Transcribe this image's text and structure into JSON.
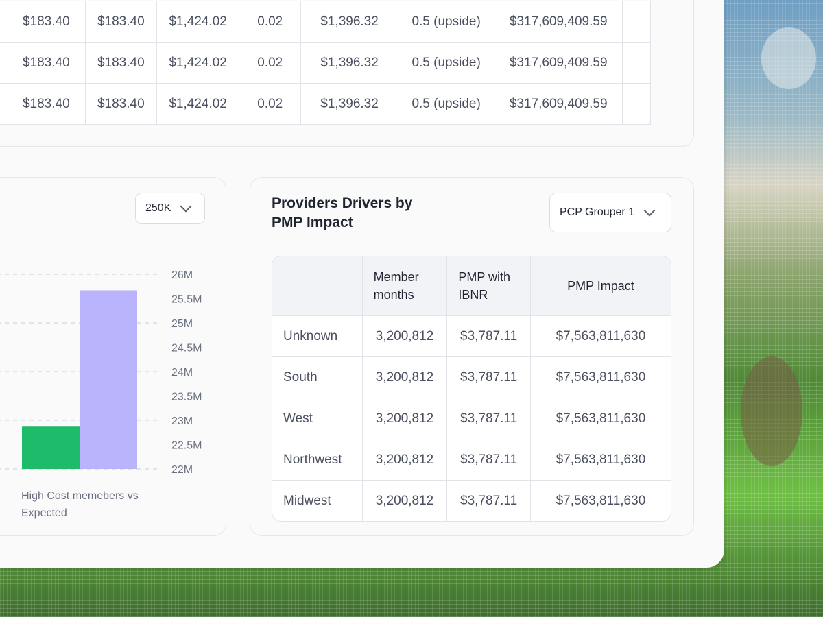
{
  "top_table": {
    "rows": [
      [
        "$183.40",
        "$183.40",
        "$1,424.02",
        "0.02",
        "$1,396.32",
        "0.5 (upside)",
        "$317,609,409.59"
      ],
      [
        "$183.40",
        "$183.40",
        "$1,424.02",
        "0.02",
        "$1,396.32",
        "0.5 (upside)",
        "$317,609,409.59"
      ],
      [
        "$183.40",
        "$183.40",
        "$1,424.02",
        "0.02",
        "$1,396.32",
        "0.5 (upside)",
        "$317,609,409.59"
      ]
    ]
  },
  "chart_card": {
    "threshold_dropdown": "250K",
    "caption": "High Cost memebers vs Expected"
  },
  "chart_data": {
    "type": "bar",
    "categories": [
      "",
      ""
    ],
    "values": [
      22.87,
      25.67
    ],
    "colors": [
      "#1dbb6a",
      "#b9b4fb"
    ],
    "ylim": [
      22,
      26
    ],
    "yticks": [
      "26M",
      "25.5M",
      "25M",
      "24.5M",
      "24M",
      "23.5M",
      "23M",
      "22.5M",
      "22M"
    ],
    "grid": true
  },
  "providers": {
    "title": "Providers Drivers by PMP Impact",
    "grouper_dropdown": "PCP Grouper 1",
    "headers": [
      "",
      "Member months",
      "PMP with IBNR",
      "PMP Impact"
    ],
    "rows": [
      {
        "name": "Unknown",
        "member_months": "3,200,812",
        "pmp_ibnr": "$3,787.11",
        "pmp_impact": "$7,563,811,630"
      },
      {
        "name": "South",
        "member_months": "3,200,812",
        "pmp_ibnr": "$3,787.11",
        "pmp_impact": "$7,563,811,630"
      },
      {
        "name": "West",
        "member_months": "3,200,812",
        "pmp_ibnr": "$3,787.11",
        "pmp_impact": "$7,563,811,630"
      },
      {
        "name": "Northwest",
        "member_months": "3,200,812",
        "pmp_ibnr": "$3,787.11",
        "pmp_impact": "$7,563,811,630"
      },
      {
        "name": "Midwest",
        "member_months": "3,200,812",
        "pmp_ibnr": "$3,787.11",
        "pmp_impact": "$7,563,811,630"
      }
    ]
  }
}
